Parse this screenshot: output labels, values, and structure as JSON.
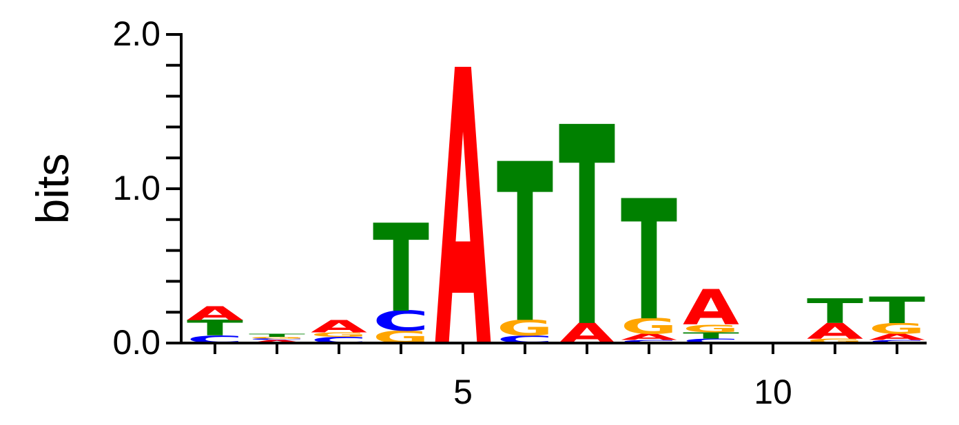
{
  "chart_data": {
    "type": "sequence-logo",
    "ylabel": "bits",
    "ylim": [
      0,
      2
    ],
    "y_ticks": [
      {
        "value": 0,
        "label": "0.0"
      },
      {
        "value": 1,
        "label": "1.0"
      },
      {
        "value": 2,
        "label": "2.0"
      }
    ],
    "x_ticks": [
      {
        "value": 5,
        "label": "5"
      },
      {
        "value": 10,
        "label": "10"
      }
    ],
    "positions": [
      1,
      2,
      3,
      4,
      5,
      6,
      7,
      8,
      9,
      10,
      11,
      12
    ],
    "colors": {
      "A": "#ff0000",
      "C": "#0000ff",
      "G": "#ffa500",
      "T": "#008000"
    },
    "columns": [
      {
        "position": 1,
        "letters": [
          {
            "base": "C",
            "height": 0.05
          },
          {
            "base": "T",
            "height": 0.1
          },
          {
            "base": "A",
            "height": 0.09
          }
        ]
      },
      {
        "position": 2,
        "letters": [
          {
            "base": "A",
            "height": 0.02
          },
          {
            "base": "C",
            "height": 0.01
          },
          {
            "base": "G",
            "height": 0.01
          },
          {
            "base": "T",
            "height": 0.02
          }
        ]
      },
      {
        "position": 3,
        "letters": [
          {
            "base": "C",
            "height": 0.04
          },
          {
            "base": "G",
            "height": 0.03
          },
          {
            "base": "A",
            "height": 0.08
          }
        ]
      },
      {
        "position": 4,
        "letters": [
          {
            "base": "G",
            "height": 0.08
          },
          {
            "base": "C",
            "height": 0.13
          },
          {
            "base": "T",
            "height": 0.57
          }
        ]
      },
      {
        "position": 5,
        "letters": [
          {
            "base": "A",
            "height": 1.79
          }
        ]
      },
      {
        "position": 6,
        "letters": [
          {
            "base": "C",
            "height": 0.05
          },
          {
            "base": "G",
            "height": 0.1
          },
          {
            "base": "T",
            "height": 1.03
          }
        ]
      },
      {
        "position": 7,
        "letters": [
          {
            "base": "A",
            "height": 0.13
          },
          {
            "base": "T",
            "height": 1.29
          }
        ]
      },
      {
        "position": 8,
        "letters": [
          {
            "base": "C",
            "height": 0.02
          },
          {
            "base": "A",
            "height": 0.04
          },
          {
            "base": "G",
            "height": 0.1
          },
          {
            "base": "T",
            "height": 0.78
          }
        ]
      },
      {
        "position": 9,
        "letters": [
          {
            "base": "C",
            "height": 0.03
          },
          {
            "base": "T",
            "height": 0.04
          },
          {
            "base": "G",
            "height": 0.05
          },
          {
            "base": "A",
            "height": 0.23
          }
        ]
      },
      {
        "position": 10,
        "letters": []
      },
      {
        "position": 11,
        "letters": [
          {
            "base": "G",
            "height": 0.03
          },
          {
            "base": "A",
            "height": 0.1
          },
          {
            "base": "T",
            "height": 0.16
          }
        ]
      },
      {
        "position": 12,
        "letters": [
          {
            "base": "C",
            "height": 0.02
          },
          {
            "base": "A",
            "height": 0.04
          },
          {
            "base": "G",
            "height": 0.07
          },
          {
            "base": "T",
            "height": 0.17
          }
        ]
      }
    ]
  }
}
